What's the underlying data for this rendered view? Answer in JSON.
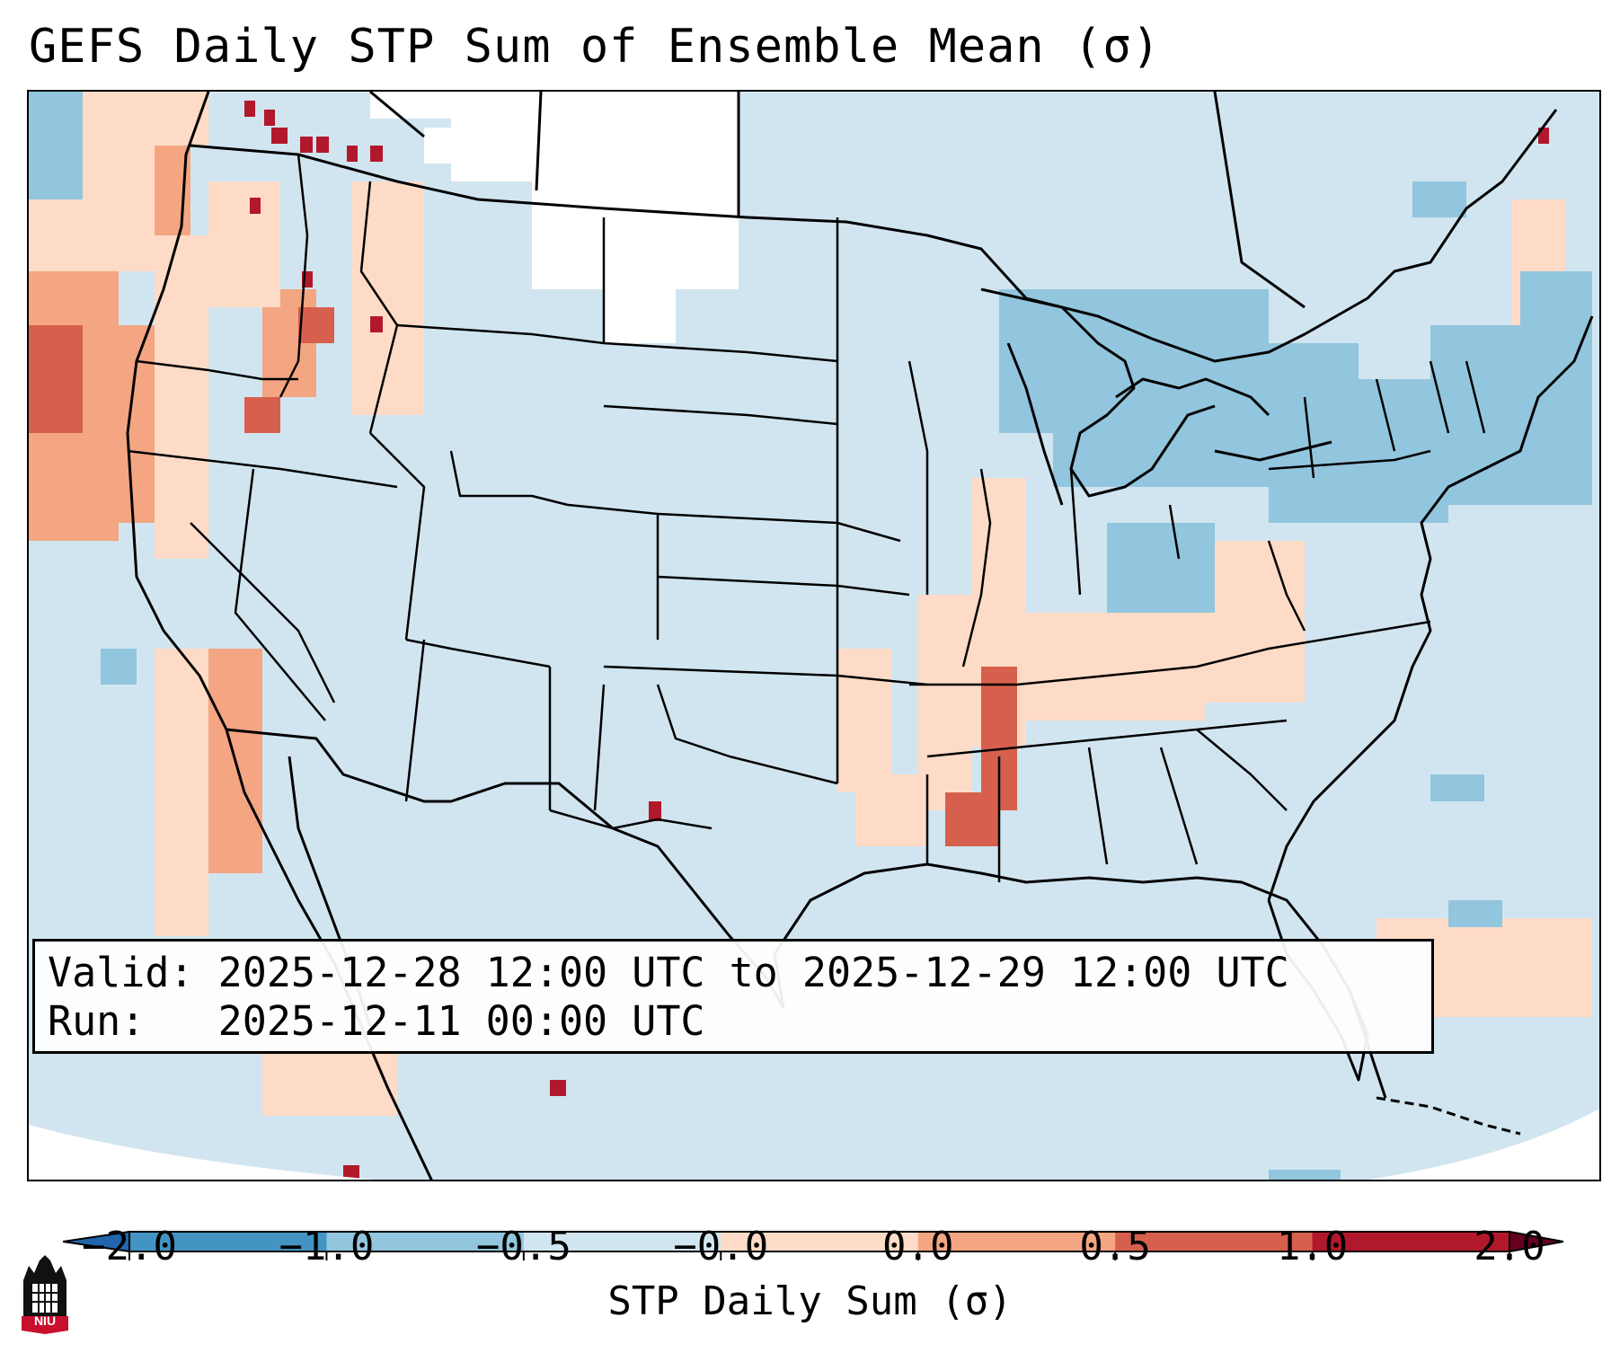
{
  "title": "GEFS Daily STP Sum of Ensemble Mean (σ)",
  "info": {
    "valid_label": "Valid:",
    "valid_value": "2025-12-28 12:00 UTC to 2025-12-29 12:00 UTC",
    "run_label": "Run:",
    "run_value": "2025-12-11 00:00 UTC"
  },
  "colorbar": {
    "label": "STP Daily Sum (σ)",
    "ticks": [
      "−2.0",
      "−1.0",
      "−0.5",
      "−0.0",
      "0.0",
      "0.5",
      "1.0",
      "2.0"
    ],
    "colors": [
      "#4393c3",
      "#92c5de",
      "#d1e5f0",
      "#f7f7f7",
      "#fddbc7",
      "#f4a582",
      "#d6604d",
      "#b2182b"
    ],
    "extend_low": "#2166ac",
    "extend_high": "#67001f"
  },
  "map": {
    "background_color": "#d1e5f0",
    "region": "Contiguous United States with parts of Canada, Mexico and the Caribbean"
  },
  "logo": {
    "text": "NIU",
    "icon": "niu-tower-logo-icon"
  }
}
